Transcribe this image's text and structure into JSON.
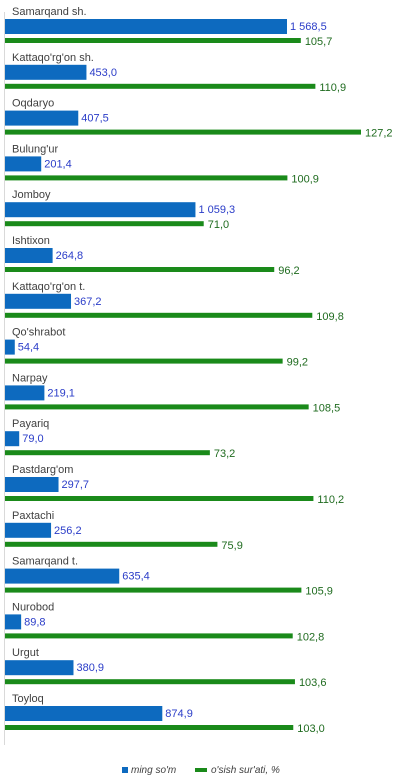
{
  "chart_data": {
    "type": "bar",
    "orientation": "horizontal",
    "categories": [
      "Samarqand sh.",
      "Kattaqo'rg'on sh.",
      "Oqdaryo",
      "Bulung'ur",
      "Jomboy",
      "Ishtixon",
      "Kattaqo'rg'on t.",
      "Qo'shrabot",
      "Narpay",
      "Payariq",
      "Pastdarg'om",
      "Paxtachi",
      "Samarqand t.",
      "Nurobod",
      "Urgut",
      "Toyloq"
    ],
    "series": [
      {
        "name": "ming so'm",
        "color": "#0d6abf",
        "values": [
          1568.5,
          453.0,
          407.5,
          201.4,
          1059.3,
          264.8,
          367.2,
          54.4,
          219.1,
          79.0,
          297.7,
          256.2,
          635.4,
          89.8,
          380.9,
          874.9
        ],
        "labels": [
          "1 568,5",
          "453,0",
          "407,5",
          "201,4",
          "1 059,3",
          "264,8",
          "367,2",
          "54,4",
          "219,1",
          "79,0",
          "297,7",
          "256,2",
          "635,4",
          "89,8",
          "380,9",
          "874,9"
        ]
      },
      {
        "name": "o'sish sur'ati, %",
        "color": "#1a8a1a",
        "values": [
          105.7,
          110.9,
          127.2,
          100.9,
          71.0,
          96.2,
          109.8,
          99.2,
          108.5,
          73.2,
          110.2,
          75.9,
          105.9,
          102.8,
          103.6,
          103.0
        ],
        "labels": [
          "105,7",
          "110,9",
          "127,2",
          "100,9",
          "71,0",
          "96,2",
          "109,8",
          "99,2",
          "108,5",
          "73,2",
          "110,2",
          "75,9",
          "105,9",
          "102,8",
          "103,6",
          "103,0"
        ]
      }
    ],
    "legend": "bottom-center",
    "grid": false
  }
}
